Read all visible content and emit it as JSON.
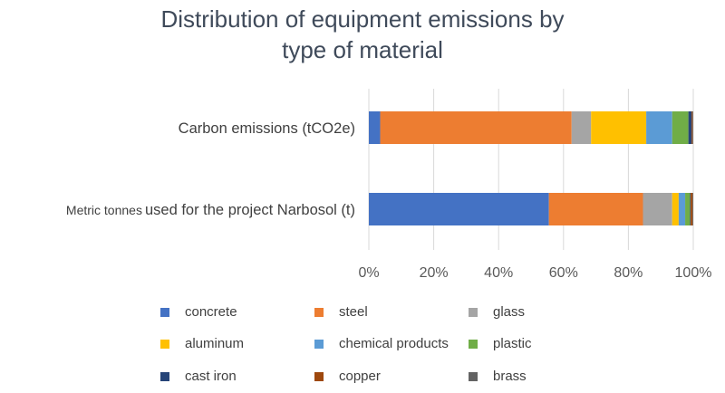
{
  "chart_data": {
    "type": "bar",
    "orientation": "horizontal",
    "stacked": "percent",
    "title_lines": [
      "Distribution of equipment emissions by",
      "type of material"
    ],
    "categories": [
      "Carbon emissions (tCO2e)",
      "Metric tonnes used for the project Narbosol (t)"
    ],
    "category_labels": [
      {
        "parts": [
          "Carbon emissions (tCO2e)"
        ]
      },
      {
        "parts": [
          "Metric tonnes",
          "used for the project Narbosol (t)"
        ]
      }
    ],
    "series": [
      {
        "name": "concrete",
        "color": "#4472c4",
        "values": [
          3.5,
          55.5
        ]
      },
      {
        "name": "steel",
        "color": "#ed7d31",
        "values": [
          59,
          29
        ]
      },
      {
        "name": "glass",
        "color": "#a5a5a5",
        "values": [
          6,
          9
        ]
      },
      {
        "name": "aluminum",
        "color": "#ffc000",
        "values": [
          17,
          2
        ]
      },
      {
        "name": "chemical products",
        "color": "#5b9bd5",
        "values": [
          8,
          2
        ]
      },
      {
        "name": "plastic",
        "color": "#70ad47",
        "values": [
          5,
          1.5
        ]
      },
      {
        "name": "cast iron",
        "color": "#264478",
        "values": [
          1,
          0.2
        ]
      },
      {
        "name": "copper",
        "color": "#9e480e",
        "values": [
          0.3,
          0.6
        ]
      },
      {
        "name": "brass",
        "color": "#636363",
        "values": [
          0.2,
          0.2
        ]
      }
    ],
    "x_ticks": [
      "0%",
      "20%",
      "40%",
      "60%",
      "80%",
      "100%"
    ],
    "xlim": [
      0,
      100
    ],
    "grid": true,
    "legend_position": "bottom"
  }
}
